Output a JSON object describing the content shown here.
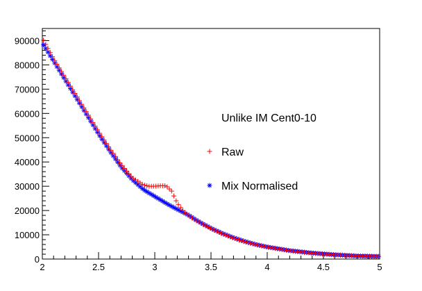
{
  "chart_data": {
    "type": "scatter",
    "title": "Unlike IM Cent0-10",
    "xlabel": "",
    "ylabel": "",
    "xlim": [
      2,
      5
    ],
    "ylim": [
      0,
      95000
    ],
    "xticks": [
      "2",
      "2.5",
      "3",
      "3.5",
      "4",
      "4.5",
      "5"
    ],
    "yticks": [
      "0",
      "10000",
      "20000",
      "30000",
      "40000",
      "50000",
      "60000",
      "70000",
      "80000",
      "90000"
    ],
    "grid": false,
    "legend_position": "right-center",
    "series": [
      {
        "name": "Raw",
        "marker": "plus",
        "color": "#ff0000",
        "x": [
          2.0,
          2.1,
          2.2,
          2.3,
          2.4,
          2.5,
          2.6,
          2.7,
          2.8,
          2.9,
          2.95,
          3.0,
          3.05,
          3.1,
          3.15,
          3.2,
          3.25,
          3.3,
          3.4,
          3.5,
          3.6,
          3.7,
          3.8,
          3.9,
          4.0,
          4.2,
          4.4,
          4.6,
          4.8,
          5.0
        ],
        "y": [
          91000,
          82500,
          75000,
          67500,
          60000,
          52500,
          45500,
          39000,
          33500,
          30500,
          30000,
          30000,
          30200,
          30200,
          28000,
          23000,
          20000,
          17800,
          15000,
          12500,
          10400,
          8600,
          7100,
          5900,
          4900,
          3400,
          2400,
          1700,
          1300,
          1100
        ]
      },
      {
        "name": "Mix Normalised",
        "marker": "star",
        "color": "#0000ff",
        "x": [
          2.0,
          2.1,
          2.2,
          2.3,
          2.4,
          2.5,
          2.6,
          2.7,
          2.8,
          2.9,
          2.95,
          3.0,
          3.05,
          3.1,
          3.15,
          3.2,
          3.25,
          3.3,
          3.4,
          3.5,
          3.6,
          3.7,
          3.8,
          3.9,
          4.0,
          4.2,
          4.4,
          4.6,
          4.8,
          5.0
        ],
        "y": [
          89000,
          81500,
          74000,
          66500,
          59000,
          51500,
          44500,
          38000,
          32700,
          28600,
          27200,
          25800,
          24400,
          23000,
          21700,
          20500,
          19300,
          18100,
          15200,
          12700,
          10600,
          8800,
          7300,
          6000,
          5000,
          3500,
          2500,
          1800,
          1300,
          1100
        ]
      }
    ]
  }
}
